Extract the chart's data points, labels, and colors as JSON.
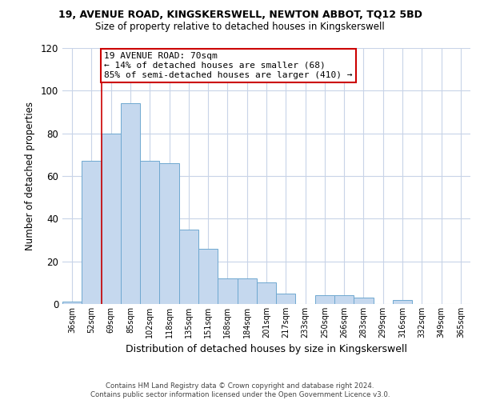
{
  "title": "19, AVENUE ROAD, KINGSKERSWELL, NEWTON ABBOT, TQ12 5BD",
  "subtitle": "Size of property relative to detached houses in Kingskerswell",
  "xlabel": "Distribution of detached houses by size in Kingskerswell",
  "ylabel": "Number of detached properties",
  "bar_labels": [
    "36sqm",
    "52sqm",
    "69sqm",
    "85sqm",
    "102sqm",
    "118sqm",
    "135sqm",
    "151sqm",
    "168sqm",
    "184sqm",
    "201sqm",
    "217sqm",
    "233sqm",
    "250sqm",
    "266sqm",
    "283sqm",
    "299sqm",
    "316sqm",
    "332sqm",
    "349sqm",
    "365sqm"
  ],
  "bar_values": [
    1,
    67,
    80,
    94,
    67,
    66,
    35,
    26,
    12,
    12,
    10,
    5,
    0,
    4,
    4,
    3,
    0,
    2,
    0,
    0,
    0
  ],
  "bar_color": "#c5d8ee",
  "bar_edge_color": "#6fa8d0",
  "vline_x_idx": 2,
  "vline_color": "#cc0000",
  "annotation_title": "19 AVENUE ROAD: 70sqm",
  "annotation_line1": "← 14% of detached houses are smaller (68)",
  "annotation_line2": "85% of semi-detached houses are larger (410) →",
  "annotation_box_color": "#ffffff",
  "annotation_box_edge": "#cc0000",
  "ylim": [
    0,
    120
  ],
  "yticks": [
    0,
    20,
    40,
    60,
    80,
    100,
    120
  ],
  "footer_line1": "Contains HM Land Registry data © Crown copyright and database right 2024.",
  "footer_line2": "Contains public sector information licensed under the Open Government Licence v3.0.",
  "bg_color": "#ffffff",
  "grid_color": "#c8d4e8"
}
